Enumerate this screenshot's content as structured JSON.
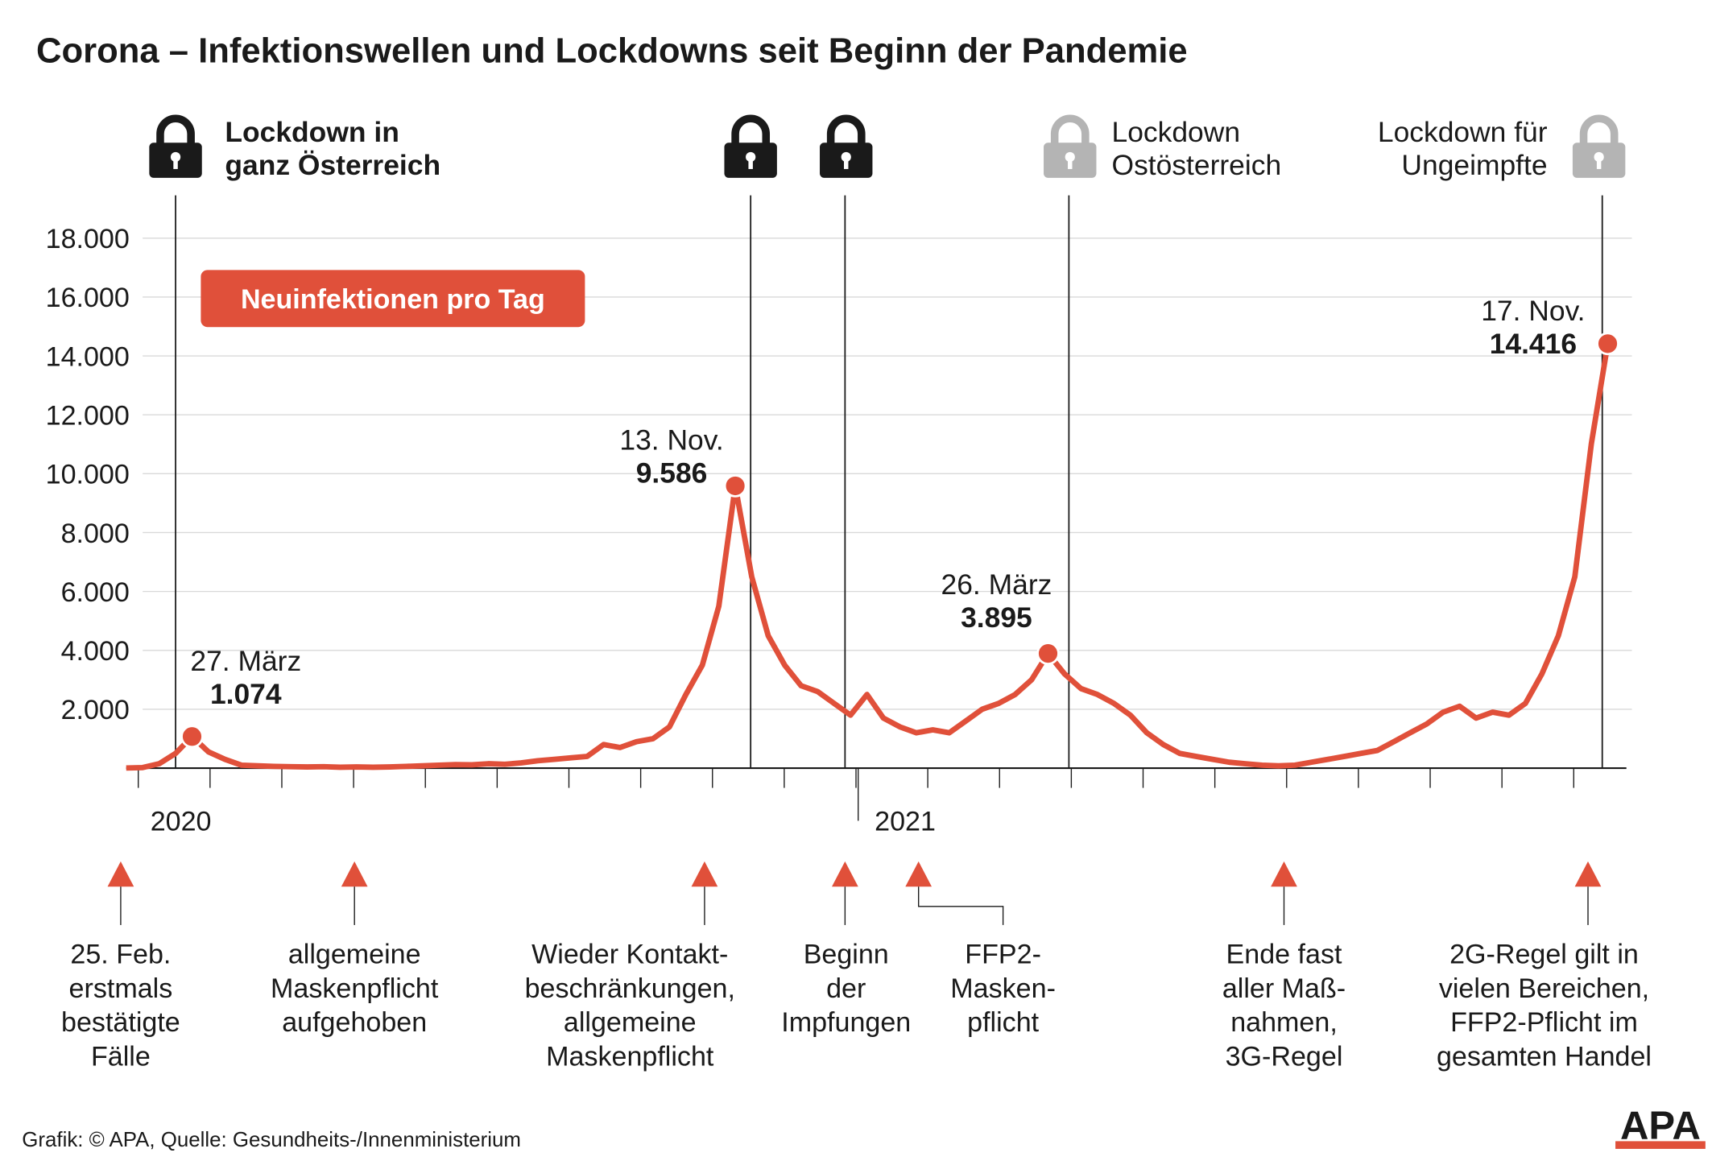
{
  "chart_data": {
    "type": "line",
    "title": "Corona – Infektionswellen und Lockdowns seit Beginn der Pandemie",
    "series": [
      {
        "name": "Neuinfektionen pro Tag",
        "color": "#e0503a",
        "values": [
          2,
          20,
          150,
          500,
          1074,
          550,
          300,
          100,
          80,
          60,
          50,
          40,
          50,
          30,
          40,
          30,
          40,
          60,
          80,
          100,
          120,
          110,
          150,
          130,
          180,
          250,
          300,
          350,
          400,
          800,
          700,
          900,
          1000,
          1400,
          2500,
          3500,
          5500,
          9586,
          6500,
          4500,
          3500,
          2800,
          2600,
          2200,
          1800,
          2500,
          1700,
          1400,
          1200,
          1300,
          1200,
          1600,
          2000,
          2200,
          2500,
          3000,
          3895,
          3200,
          2700,
          2500,
          2200,
          1800,
          1200,
          800,
          500,
          400,
          300,
          200,
          150,
          100,
          80,
          100,
          200,
          300,
          400,
          500,
          600,
          900,
          1200,
          1500,
          1900,
          2100,
          1700,
          1900,
          1800,
          2200,
          3200,
          4500,
          6500,
          11000,
          14416
        ]
      }
    ],
    "value_labels": [
      null,
      null,
      null,
      null,
      "1.074",
      null,
      null,
      null,
      null,
      null,
      null,
      null,
      null,
      null,
      null,
      null,
      null,
      null,
      null,
      null,
      null,
      null,
      null,
      null,
      null,
      null,
      null,
      null,
      null,
      null,
      null,
      null,
      null,
      null,
      null,
      null,
      null,
      "9.586",
      null,
      null,
      null,
      null,
      null,
      null,
      null,
      null,
      null,
      null,
      null,
      null,
      null,
      null,
      null,
      null,
      null,
      null,
      "3.895",
      null,
      null,
      null,
      null,
      null,
      null,
      null,
      null,
      null,
      null,
      null,
      null,
      null,
      null,
      null,
      null,
      null,
      null,
      null,
      null,
      null,
      null,
      null,
      null,
      null,
      null,
      null,
      null,
      null,
      null,
      null,
      null,
      null,
      "14.416"
    ],
    "point_labels": [
      null,
      null,
      null,
      null,
      "27. März",
      null,
      null,
      null,
      null,
      null,
      null,
      null,
      null,
      null,
      null,
      null,
      null,
      null,
      null,
      null,
      null,
      null,
      null,
      null,
      null,
      null,
      null,
      null,
      null,
      null,
      null,
      null,
      null,
      null,
      null,
      null,
      null,
      "13. Nov.",
      null,
      null,
      null,
      null,
      null,
      null,
      null,
      null,
      null,
      null,
      null,
      null,
      null,
      null,
      null,
      null,
      null,
      null,
      "26. März",
      null,
      null,
      null,
      null,
      null,
      null,
      null,
      null,
      null,
      null,
      null,
      null,
      null,
      null,
      null,
      null,
      null,
      null,
      null,
      null,
      null,
      null,
      null,
      null,
      null,
      null,
      null,
      null,
      null,
      null,
      null,
      null,
      null,
      "17. Nov."
    ],
    "categories": [
      null,
      "2020",
      null,
      null,
      null,
      null,
      null,
      null,
      null,
      null,
      null,
      null,
      null,
      null,
      null,
      null,
      null,
      null,
      null,
      null,
      null,
      null,
      null,
      null,
      null,
      null,
      null,
      null,
      null,
      null,
      null,
      null,
      null,
      null,
      null,
      null,
      null,
      null,
      null,
      null,
      null,
      null,
      null,
      null,
      null,
      "2021",
      null,
      null,
      null,
      null,
      null,
      null,
      null,
      null,
      null,
      null,
      null,
      null,
      null,
      null,
      null,
      null,
      null,
      null,
      null,
      null,
      null,
      null,
      null,
      null,
      null,
      null,
      null,
      null,
      null,
      null,
      null,
      null,
      null,
      null,
      null,
      null,
      null,
      null,
      null,
      null,
      null,
      null,
      null,
      null,
      null
    ],
    "ylim": [
      0,
      18000
    ],
    "yticks": [
      {
        "value": 2000,
        "label": "2.000"
      },
      {
        "value": 4000,
        "label": "4.000"
      },
      {
        "value": 6000,
        "label": "6.000"
      },
      {
        "value": 8000,
        "label": "8.000"
      },
      {
        "value": 10000,
        "label": "10.000"
      },
      {
        "value": 12000,
        "label": "12.000"
      },
      {
        "value": 14000,
        "label": "14.000"
      },
      {
        "value": 16000,
        "label": "16.000"
      },
      {
        "value": 18000,
        "label": "18.000"
      }
    ],
    "grid": true
  },
  "lockdowns": [
    {
      "lines": [
        "Lockdown in",
        "ganz Österreich"
      ],
      "color": "#1a1a1a"
    },
    {
      "lines": [],
      "color": "#1a1a1a"
    },
    {
      "lines": [],
      "color": "#1a1a1a"
    },
    {
      "lines": [
        "Lockdown",
        "Ostösterreich"
      ],
      "color": "#b4b4b4"
    },
    {
      "lines": [
        "Lockdown für",
        "Ungeimpfte"
      ],
      "color": "#b4b4b4"
    }
  ],
  "events": [
    {
      "lines": [
        "25. Feb.",
        "erstmals",
        "bestätigte",
        "Fälle"
      ]
    },
    {
      "lines": [
        "allgemeine",
        "Maskenpflicht",
        "aufgehoben"
      ]
    },
    {
      "lines": [
        "Wieder Kontakt-",
        "beschränkungen,",
        "allgemeine",
        "Maskenpflicht"
      ]
    },
    {
      "lines": [
        "Beginn",
        "der",
        "Impfungen"
      ]
    },
    {
      "lines": [
        "FFP2-",
        "Masken-",
        "pflicht"
      ]
    },
    {
      "lines": [
        "Ende fast",
        "aller Maß-",
        "nahmen,",
        "3G-Regel"
      ]
    },
    {
      "lines": [
        "2G-Regel gilt in",
        "vielen Bereichen,",
        "FFP2-Pflicht im",
        "gesamten Handel"
      ]
    }
  ],
  "source": "Grafik: © APA, Quelle: Gesundheits-/Innenministerium",
  "logo": "APA"
}
